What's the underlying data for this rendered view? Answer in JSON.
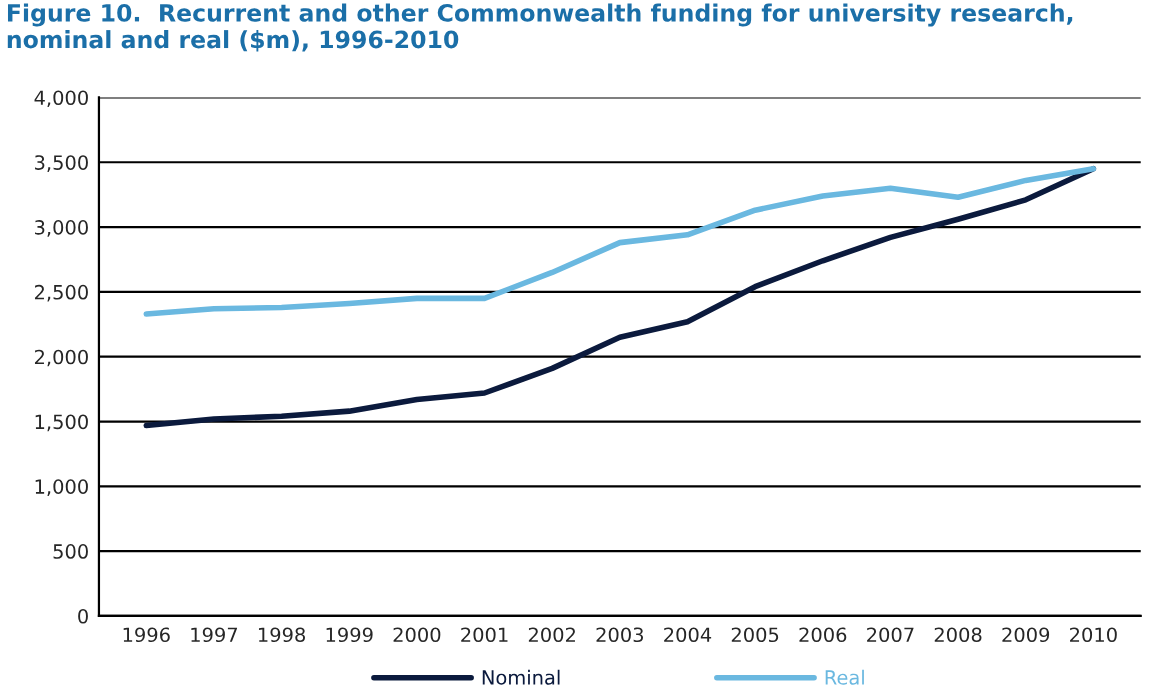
{
  "chart_data": {
    "type": "line",
    "title": "Figure 10.  Recurrent and other Commonwealth funding for university research, nominal and real ($m), 1996-2010",
    "categories": [
      "1996",
      "1997",
      "1998",
      "1999",
      "2000",
      "2001",
      "2002",
      "2003",
      "2004",
      "2005",
      "2006",
      "2007",
      "2008",
      "2009",
      "2010"
    ],
    "series": [
      {
        "name": "Nominal",
        "color": "#0b1a3d",
        "values": [
          1470,
          1520,
          1540,
          1580,
          1670,
          1720,
          1910,
          2150,
          2270,
          2540,
          2740,
          2920,
          3060,
          3210,
          3450
        ]
      },
      {
        "name": "Real",
        "color": "#6ab8e0",
        "values": [
          2330,
          2370,
          2380,
          2410,
          2450,
          2450,
          2650,
          2880,
          2940,
          3130,
          3240,
          3300,
          3230,
          3360,
          3450
        ]
      }
    ],
    "ylim": [
      0,
      4000
    ],
    "yticks": [
      {
        "value": 0,
        "label": "0"
      },
      {
        "value": 500,
        "label": "500"
      },
      {
        "value": 1000,
        "label": "1,000"
      },
      {
        "value": 1500,
        "label": "1,500"
      },
      {
        "value": 2000,
        "label": "2,000"
      },
      {
        "value": 2500,
        "label": "2,500"
      },
      {
        "value": 3000,
        "label": "3,000"
      },
      {
        "value": 3500,
        "label": "3,500"
      },
      {
        "value": 4000,
        "label": "4,000"
      }
    ],
    "grid": "y",
    "legend": "bottom",
    "marker": "none",
    "line_style": "solid"
  }
}
